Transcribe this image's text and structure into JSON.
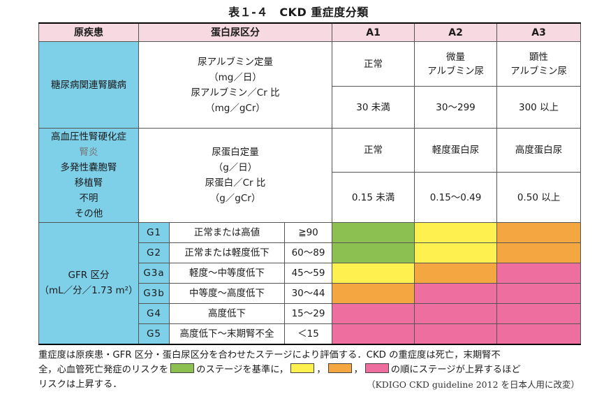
{
  "title": "表１-４　CKD 重症度分類",
  "header": {
    "disease": "原疾患",
    "proteinuria": "蛋白尿区分",
    "a1": "A1",
    "a2": "A2",
    "a3": "A3"
  },
  "diabetes": {
    "name": "糖尿病関連腎臓病",
    "measure_line1": "尿アルブミン定量",
    "measure_line2": "（mg／日）",
    "measure_line3": "尿アルブミン／Cr 比",
    "measure_line4": "（mg／gCr）",
    "a1_label": "正常",
    "a2_label_line1": "微量",
    "a2_label_line2": "アルブミン尿",
    "a3_label_line1": "顕性",
    "a3_label_line2": "アルブミン尿",
    "a1_value": "30 未満",
    "a2_value": "30～299",
    "a3_value": "300 以上"
  },
  "other": {
    "diseases": [
      "高血圧性腎硬化症",
      "腎炎",
      "多発性嚢胞腎",
      "移植腎",
      "不明",
      "その他"
    ],
    "measure_line1": "尿蛋白定量",
    "measure_line2": "（g／日）",
    "measure_line3": "尿蛋白／Cr 比",
    "measure_line4": "（g／gCr）",
    "a1_label": "正常",
    "a2_label": "軽度蛋白尿",
    "a3_label": "高度蛋白尿",
    "a1_value": "0.15 未満",
    "a2_value": "0.15～0.49",
    "a3_value": "0.50 以上"
  },
  "gfr": {
    "label_line1": "GFR 区分",
    "label_line2": "（mL／分／1.73 m²）",
    "rows": [
      {
        "code": "G1",
        "desc": "正常または高値",
        "range": "≧90",
        "colors": [
          "green",
          "yellow",
          "orange"
        ]
      },
      {
        "code": "G2",
        "desc": "正常または軽度低下",
        "range": "60～89",
        "colors": [
          "green",
          "yellow",
          "orange"
        ]
      },
      {
        "code": "G3a",
        "desc": "軽度～中等度低下",
        "range": "45～59",
        "colors": [
          "yellow",
          "orange",
          "pink"
        ]
      },
      {
        "code": "G3b",
        "desc": "中等度～高度低下",
        "range": "30～44",
        "colors": [
          "orange",
          "pink",
          "pink"
        ]
      },
      {
        "code": "G4",
        "desc": "高度低下",
        "range": "15～29",
        "colors": [
          "pink",
          "pink",
          "pink"
        ]
      },
      {
        "code": "G5",
        "desc": "高度低下～末期腎不全",
        "range": "＜15",
        "colors": [
          "pink",
          "pink",
          "pink"
        ]
      }
    ]
  },
  "colors": {
    "green": "#8cc152",
    "yellow": "#fdf04f",
    "orange": "#f4a740",
    "pink": "#ee6f9f",
    "cyan": "#7ecfe8",
    "header_pink": "#f7d9e1"
  },
  "note": {
    "line1": "重症度は原疾患・GFR 区分・蛋白尿区分を合わせたステージにより評価する．CKD の重症度は死亡，末期腎不",
    "line2_a": "全，心血管死亡発症のリスクを",
    "line2_b": "のステージを基準に，",
    "line2_c": "，",
    "line2_d": "，",
    "line2_e": "の順にステージが上昇するほど",
    "line3": "リスクは上昇する．",
    "source": "（KDIGO CKD guideline 2012 を日本人用に改変）"
  }
}
